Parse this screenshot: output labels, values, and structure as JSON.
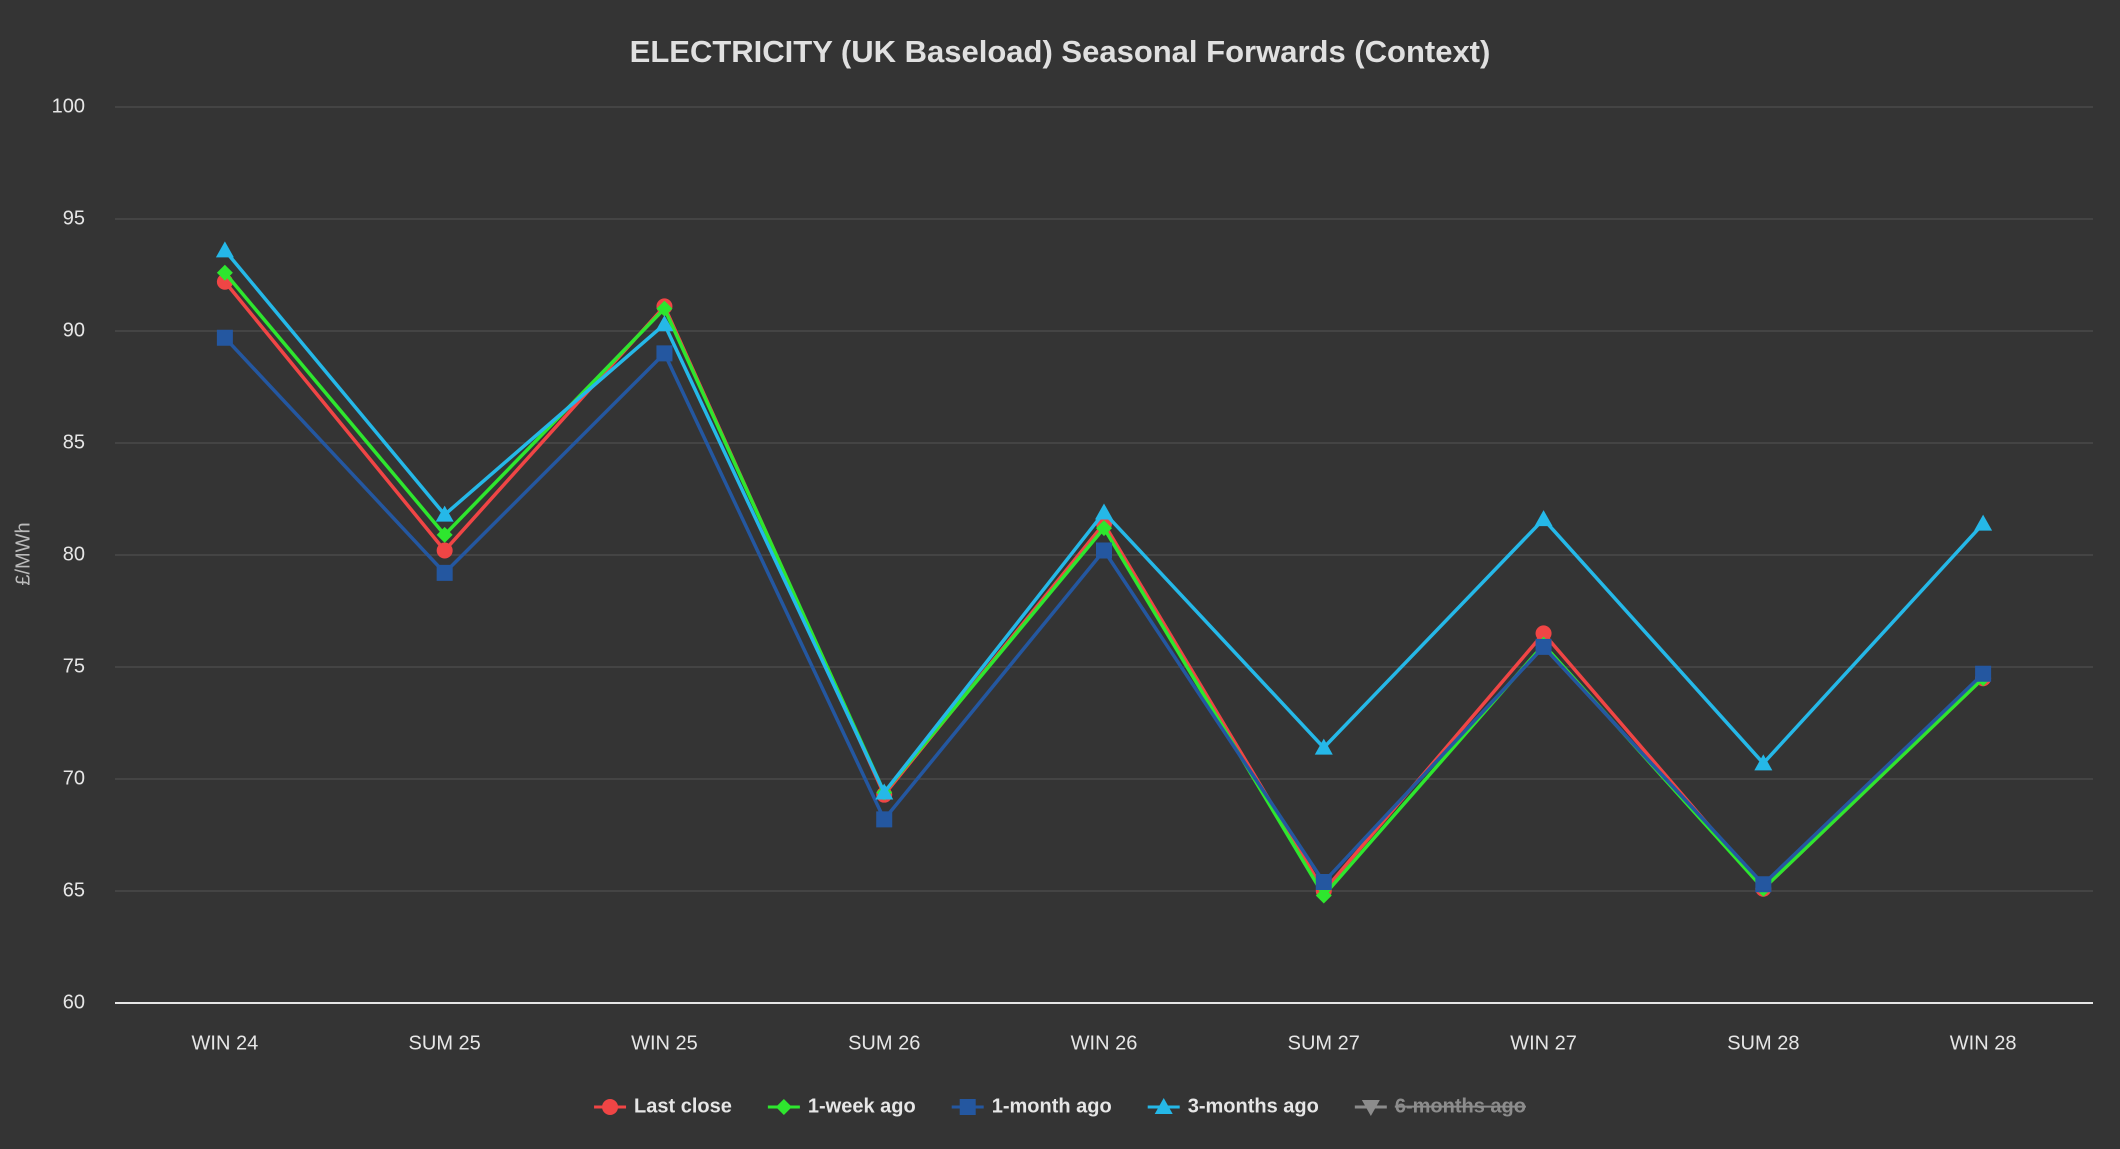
{
  "chart_data": {
    "type": "line",
    "title": "ELECTRICITY (UK Baseload) Seasonal Forwards (Context)",
    "y_label": "£/MWh",
    "categories": [
      "WIN 24",
      "SUM 25",
      "WIN 25",
      "SUM 26",
      "WIN 26",
      "SUM 27",
      "WIN 27",
      "SUM 28",
      "WIN 28"
    ],
    "ylim": [
      60,
      100
    ],
    "yticks": [
      60,
      65,
      70,
      75,
      80,
      85,
      90,
      95,
      100
    ],
    "grid": true,
    "legend": "bottom",
    "series": [
      {
        "name": "Last close",
        "color": "#f04545",
        "marker": "circle",
        "visible": true,
        "values": [
          92.2,
          80.2,
          91.1,
          69.3,
          81.4,
          65.0,
          76.5,
          65.1,
          74.5
        ]
      },
      {
        "name": "1-week ago",
        "color": "#2ee62e",
        "marker": "diamond",
        "visible": true,
        "values": [
          92.6,
          80.9,
          91.0,
          69.4,
          81.2,
          64.8,
          76.0,
          65.1,
          74.5
        ]
      },
      {
        "name": "1-month ago",
        "color": "#2457a0",
        "marker": "square",
        "visible": true,
        "values": [
          89.7,
          79.2,
          89.0,
          68.2,
          80.2,
          65.4,
          75.9,
          65.3,
          74.7
        ]
      },
      {
        "name": "3-months ago",
        "color": "#25b8e8",
        "marker": "triangle",
        "visible": true,
        "values": [
          93.6,
          81.8,
          90.3,
          69.4,
          81.9,
          71.4,
          81.6,
          70.7,
          81.4
        ]
      },
      {
        "name": "6-months ago",
        "color": "#8c8c8c",
        "marker": "triangle-down",
        "visible": false,
        "values": [
          null,
          null,
          null,
          null,
          null,
          null,
          null,
          null,
          null
        ]
      }
    ]
  }
}
